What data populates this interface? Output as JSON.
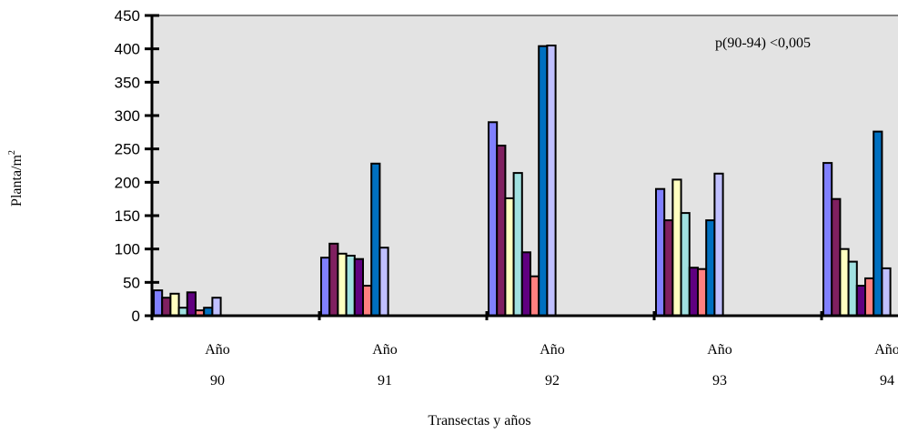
{
  "chart_data": {
    "type": "bar",
    "annotation": "p(90-94) <0,005",
    "xlabel": "Transectas y años",
    "ylabel": "Planta/m",
    "ylabel_superscript": "2",
    "ylim": [
      0,
      450
    ],
    "yticks": [
      "0",
      "50",
      "100",
      "150",
      "200",
      "250",
      "300",
      "350",
      "400",
      "450"
    ],
    "grid": false,
    "legend": "none",
    "background": "#e3e3e3",
    "category_prefix": "Año",
    "categories": [
      "90",
      "91",
      "92",
      "93",
      "94"
    ],
    "series": [
      {
        "color": "#8080ff",
        "values": [
          38,
          87,
          290,
          190,
          229
        ]
      },
      {
        "color": "#802060",
        "values": [
          27,
          108,
          255,
          143,
          175
        ]
      },
      {
        "color": "#ffffc0",
        "values": [
          33,
          93,
          176,
          204,
          100
        ]
      },
      {
        "color": "#a0e0e0",
        "values": [
          12,
          90,
          214,
          154,
          81
        ]
      },
      {
        "color": "#600080",
        "values": [
          35,
          85,
          95,
          72,
          45
        ]
      },
      {
        "color": "#ff8080",
        "values": [
          8,
          45,
          59,
          70,
          56
        ]
      },
      {
        "color": "#0070c0",
        "values": [
          12,
          228,
          404,
          143,
          276
        ]
      },
      {
        "color": "#c0c0ff",
        "values": [
          27,
          102,
          405,
          213,
          71
        ]
      }
    ]
  }
}
